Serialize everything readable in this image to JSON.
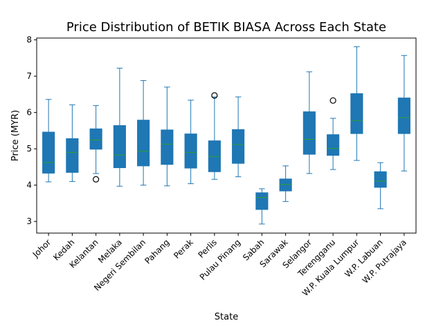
{
  "chart_data": {
    "type": "boxplot",
    "title": "Price Distribution of BETIK BIASA Across Each State",
    "xlabel": "State",
    "ylabel": "Price (MYR)",
    "ylim": [
      2.68,
      8.05
    ],
    "yticks": [
      3,
      4,
      5,
      6,
      7,
      8
    ],
    "categories": [
      "Johor",
      "Kedah",
      "Kelantan",
      "Melaka",
      "Negeri Sembilan",
      "Pahang",
      "Perak",
      "Perlis",
      "Pulau Pinang",
      "Sabah",
      "Sarawak",
      "Selangor",
      "Terengganu",
      "W.P. Kuala Lumpur",
      "W.P. Labuan",
      "W.P. Putrajaya"
    ],
    "boxes": [
      {
        "whislo": 4.09,
        "q1": 4.33,
        "med": 4.62,
        "q3": 5.46,
        "whishi": 6.36,
        "fliers": []
      },
      {
        "whislo": 4.1,
        "q1": 4.35,
        "med": 4.9,
        "q3": 5.28,
        "whishi": 6.21,
        "fliers": []
      },
      {
        "whislo": 4.32,
        "q1": 4.99,
        "med": 5.24,
        "q3": 5.55,
        "whishi": 6.19,
        "fliers": [
          4.16
        ]
      },
      {
        "whislo": 3.97,
        "q1": 4.48,
        "med": 4.83,
        "q3": 5.64,
        "whishi": 7.22,
        "fliers": []
      },
      {
        "whislo": 4.0,
        "q1": 4.53,
        "med": 4.93,
        "q3": 5.79,
        "whishi": 6.88,
        "fliers": []
      },
      {
        "whislo": 3.98,
        "q1": 4.57,
        "med": 5.13,
        "q3": 5.52,
        "whishi": 6.7,
        "fliers": []
      },
      {
        "whislo": 4.04,
        "q1": 4.47,
        "med": 4.9,
        "q3": 5.41,
        "whishi": 6.34,
        "fliers": []
      },
      {
        "whislo": 4.16,
        "q1": 4.37,
        "med": 4.79,
        "q3": 5.22,
        "whishi": 6.43,
        "fliers": [
          6.47
        ]
      },
      {
        "whislo": 4.23,
        "q1": 4.6,
        "med": 5.12,
        "q3": 5.53,
        "whishi": 6.43,
        "fliers": []
      },
      {
        "whislo": 2.93,
        "q1": 3.33,
        "med": 3.66,
        "q3": 3.79,
        "whishi": 3.9,
        "fliers": []
      },
      {
        "whislo": 3.55,
        "q1": 3.84,
        "med": 4.02,
        "q3": 4.17,
        "whishi": 4.53,
        "fliers": []
      },
      {
        "whislo": 4.32,
        "q1": 4.85,
        "med": 5.26,
        "q3": 6.02,
        "whishi": 7.12,
        "fliers": []
      },
      {
        "whislo": 4.43,
        "q1": 4.82,
        "med": 5.01,
        "q3": 5.39,
        "whishi": 5.84,
        "fliers": [
          6.33
        ]
      },
      {
        "whislo": 4.68,
        "q1": 5.42,
        "med": 5.78,
        "q3": 6.52,
        "whishi": 7.81,
        "fliers": []
      },
      {
        "whislo": 3.35,
        "q1": 3.94,
        "med": 4.11,
        "q3": 4.37,
        "whishi": 4.62,
        "fliers": []
      },
      {
        "whislo": 4.39,
        "q1": 5.42,
        "med": 5.86,
        "q3": 6.4,
        "whishi": 7.57,
        "fliers": []
      }
    ],
    "colors": {
      "box_fill": "#1f77b4",
      "box_edge": "#1f77b4",
      "median": "#2ca02c",
      "whisker": "#1f77b4",
      "flier": "#000000"
    },
    "grid": false,
    "legend": "none"
  }
}
